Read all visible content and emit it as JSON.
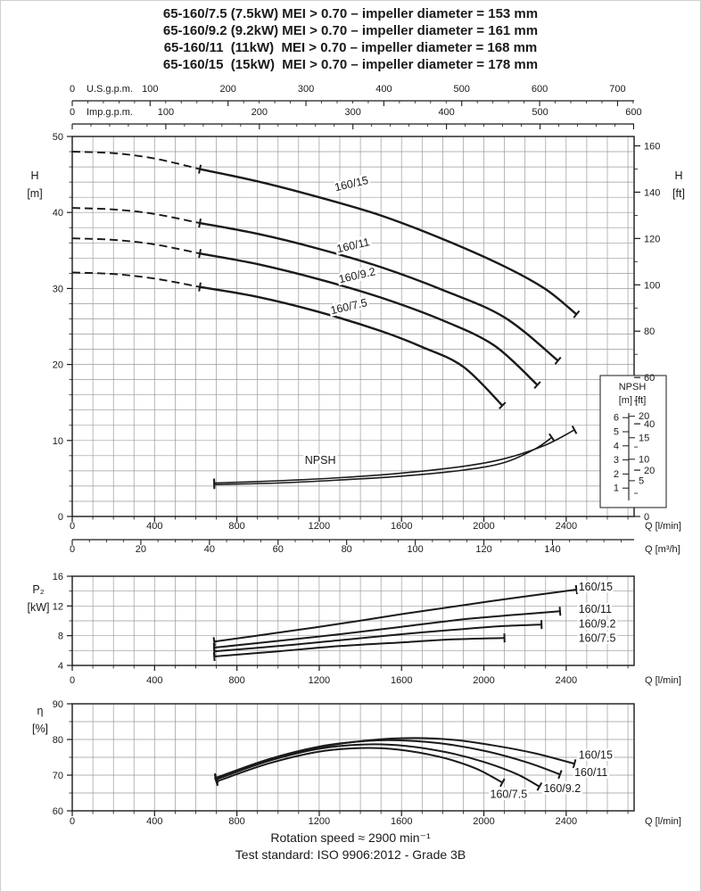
{
  "style": {
    "ink": "#1a1a1a",
    "grid_color": "#9a9a9a",
    "paper": "#ffffff"
  },
  "header": {
    "lines": [
      "65-160/7.5 (7.5kW) MEI > 0.70 – impeller diameter = 153 mm",
      "65-160/9.2 (9.2kW) MEI > 0.70 – impeller diameter = 161 mm",
      "65-160/11  (11kW)  MEI > 0.70 – impeller diameter = 168 mm",
      "65-160/15  (15kW)  MEI > 0.70 – impeller diameter = 178 mm"
    ]
  },
  "footer": {
    "line1": "Rotation speed ≈ 2900 min⁻¹",
    "line2": "Test standard: ISO 9906:2012 - Grade 3B"
  },
  "chart_data": [
    {
      "id": "head-flow",
      "type": "line",
      "xlim": [
        0,
        2730
      ],
      "ylim": [
        0,
        50
      ],
      "grid": {
        "x_step": 100,
        "y_step": 2
      },
      "x_axis": {
        "ticks": [
          0,
          400,
          800,
          1200,
          1600,
          2000,
          2400
        ],
        "minor_step": 100,
        "label": "Q [l/min]"
      },
      "y_axis": {
        "title": "H",
        "unit": "[m]",
        "ticks": [
          0,
          10,
          20,
          30,
          40,
          50
        ]
      },
      "right_axis": {
        "title": "H",
        "unit": "[ft]",
        "m_per_unit": 0.3048,
        "ticks": [
          0,
          20,
          40,
          60,
          80,
          100,
          120,
          140,
          160
        ],
        "minor_step": 10
      },
      "top_axes": [
        {
          "unit_label": "U.S.g.p.m.",
          "lmin_per_unit": 3.785,
          "ticks": [
            0,
            100,
            200,
            300,
            400,
            500,
            600,
            700
          ],
          "minor_step": 20
        },
        {
          "unit_label": "Imp.g.p.m.",
          "lmin_per_unit": 4.546,
          "ticks": [
            0,
            100,
            200,
            300,
            400,
            500,
            600
          ],
          "minor_step": 20
        }
      ],
      "extra_bottom_axis": {
        "label": "Q [m³/h]",
        "lmin_per_unit": 16.667,
        "ticks": [
          0,
          20,
          40,
          60,
          80,
          100,
          120,
          140
        ],
        "minor_step": 5
      },
      "npsh_box": {
        "title": "NPSH",
        "units": "[m] [ft]",
        "m_ticks": [
          1,
          2,
          3,
          4,
          5,
          6
        ],
        "ft_ticks": [
          5,
          10,
          15,
          20
        ]
      },
      "series": [
        {
          "name": "160/15",
          "width": 2.4,
          "end_ticks": true,
          "label": {
            "text": "160/15",
            "x": 1280,
            "y": 42.8,
            "rot": -13
          },
          "dashed_points": [
            [
              0,
              48
            ],
            [
              200,
              47.8
            ],
            [
              400,
              47.1
            ],
            [
              620,
              45.7
            ]
          ],
          "points": [
            [
              620,
              45.7
            ],
            [
              900,
              44.1
            ],
            [
              1200,
              42
            ],
            [
              1500,
              39.6
            ],
            [
              1800,
              36.5
            ],
            [
              2100,
              32.9
            ],
            [
              2300,
              29.9
            ],
            [
              2450,
              26.6
            ]
          ]
        },
        {
          "name": "160/11",
          "width": 2.4,
          "end_ticks": true,
          "label": {
            "text": "160/11",
            "x": 1290,
            "y": 34.7,
            "rot": -13
          },
          "dashed_points": [
            [
              0,
              40.6
            ],
            [
              200,
              40.4
            ],
            [
              400,
              39.8
            ],
            [
              620,
              38.6
            ]
          ],
          "points": [
            [
              620,
              38.6
            ],
            [
              900,
              37.2
            ],
            [
              1200,
              35.2
            ],
            [
              1500,
              32.8
            ],
            [
              1800,
              29.8
            ],
            [
              2100,
              26.2
            ],
            [
              2360,
              20.5
            ]
          ]
        },
        {
          "name": "160/9.2",
          "width": 2.4,
          "end_ticks": true,
          "label": {
            "text": "160/9.2",
            "x": 1300,
            "y": 30.7,
            "rot": -13
          },
          "dashed_points": [
            [
              0,
              36.6
            ],
            [
              200,
              36.4
            ],
            [
              400,
              35.8
            ],
            [
              620,
              34.6
            ]
          ],
          "points": [
            [
              620,
              34.6
            ],
            [
              900,
              33.2
            ],
            [
              1200,
              31.2
            ],
            [
              1500,
              28.8
            ],
            [
              1800,
              25.8
            ],
            [
              2050,
              22.5
            ],
            [
              2260,
              17.3
            ]
          ]
        },
        {
          "name": "160/7.5",
          "width": 2.4,
          "end_ticks": true,
          "label": {
            "text": "160/7.5",
            "x": 1260,
            "y": 26.6,
            "rot": -13
          },
          "dashed_points": [
            [
              0,
              32.1
            ],
            [
              200,
              31.9
            ],
            [
              400,
              31.3
            ],
            [
              620,
              30.2
            ]
          ],
          "points": [
            [
              620,
              30.2
            ],
            [
              900,
              28.9
            ],
            [
              1200,
              26.9
            ],
            [
              1500,
              24.4
            ],
            [
              1700,
              22.3
            ],
            [
              1900,
              19.7
            ],
            [
              2090,
              14.6
            ]
          ]
        },
        {
          "name": "NPSH-upper",
          "width": 1.6,
          "end_ticks": true,
          "label": {
            "text": "NPSH",
            "x": 1130,
            "y": 6.9,
            "rot": 0
          },
          "points": [
            [
              690,
              4.4
            ],
            [
              1000,
              4.7
            ],
            [
              1300,
              5.1
            ],
            [
              1600,
              5.7
            ],
            [
              1900,
              6.6
            ],
            [
              2100,
              7.6
            ],
            [
              2300,
              9.4
            ],
            [
              2440,
              11.4
            ]
          ]
        },
        {
          "name": "NPSH-lower",
          "width": 1.6,
          "end_ticks": true,
          "points": [
            [
              690,
              4.2
            ],
            [
              1000,
              4.4
            ],
            [
              1300,
              4.8
            ],
            [
              1600,
              5.3
            ],
            [
              1900,
              6.1
            ],
            [
              2100,
              7.1
            ],
            [
              2250,
              8.9
            ],
            [
              2330,
              10.4
            ]
          ]
        }
      ]
    },
    {
      "id": "power",
      "type": "line",
      "xlim": [
        0,
        2730
      ],
      "ylim": [
        4,
        16
      ],
      "grid": {
        "x_step": 100,
        "y_step": 2
      },
      "x_axis": {
        "ticks": [
          0,
          400,
          800,
          1200,
          1600,
          2000,
          2400
        ],
        "minor_step": 100,
        "label": "Q [l/min]"
      },
      "y_axis": {
        "title": "P₂",
        "unit": "[kW]",
        "ticks": [
          4,
          8,
          12,
          16
        ]
      },
      "series": [
        {
          "name": "160/15",
          "width": 2,
          "end_ticks": true,
          "label": {
            "text": "160/15",
            "x": 2460,
            "y": 14.1,
            "rot": 0
          },
          "points": [
            [
              690,
              7.2
            ],
            [
              1000,
              8.4
            ],
            [
              1300,
              9.6
            ],
            [
              1600,
              10.9
            ],
            [
              1900,
              12.1
            ],
            [
              2150,
              13.1
            ],
            [
              2450,
              14.2
            ]
          ]
        },
        {
          "name": "160/11",
          "width": 2,
          "end_ticks": true,
          "label": {
            "text": "160/11",
            "x": 2460,
            "y": 11.1,
            "rot": 0
          },
          "points": [
            [
              690,
              6.4
            ],
            [
              1000,
              7.3
            ],
            [
              1300,
              8.2
            ],
            [
              1600,
              9.2
            ],
            [
              1900,
              10.2
            ],
            [
              2150,
              10.8
            ],
            [
              2370,
              11.3
            ]
          ]
        },
        {
          "name": "160/9.2",
          "width": 2,
          "end_ticks": true,
          "label": {
            "text": "160/9.2",
            "x": 2460,
            "y": 9.1,
            "rot": 0
          },
          "points": [
            [
              690,
              5.9
            ],
            [
              1000,
              6.6
            ],
            [
              1300,
              7.4
            ],
            [
              1600,
              8.2
            ],
            [
              1900,
              8.9
            ],
            [
              2100,
              9.3
            ],
            [
              2280,
              9.5
            ]
          ]
        },
        {
          "name": "160/7.5",
          "width": 2,
          "end_ticks": true,
          "label": {
            "text": "160/7.5",
            "x": 2460,
            "y": 7.2,
            "rot": 0
          },
          "points": [
            [
              690,
              5.2
            ],
            [
              1000,
              5.9
            ],
            [
              1300,
              6.6
            ],
            [
              1600,
              7.1
            ],
            [
              1850,
              7.5
            ],
            [
              2100,
              7.7
            ]
          ]
        }
      ]
    },
    {
      "id": "efficiency",
      "type": "line",
      "xlim": [
        0,
        2730
      ],
      "ylim": [
        60,
        90
      ],
      "grid": {
        "x_step": 100,
        "y_step": 5
      },
      "x_axis": {
        "ticks": [
          0,
          400,
          800,
          1200,
          1600,
          2000,
          2400
        ],
        "minor_step": 100,
        "label": "Q [l/min]"
      },
      "y_axis": {
        "title": "η",
        "unit": "[%]",
        "ticks": [
          60,
          70,
          80,
          90
        ]
      },
      "series": [
        {
          "name": "160/15",
          "width": 2,
          "end_ticks": true,
          "label": {
            "text": "160/15",
            "x": 2460,
            "y": 74.6,
            "rot": 0
          },
          "points": [
            [
              700,
              69
            ],
            [
              950,
              74
            ],
            [
              1200,
              77.8
            ],
            [
              1450,
              79.8
            ],
            [
              1650,
              80.4
            ],
            [
              1850,
              79.9
            ],
            [
              2050,
              78.3
            ],
            [
              2250,
              76.1
            ],
            [
              2440,
              73.2
            ]
          ]
        },
        {
          "name": "160/11",
          "width": 2,
          "end_ticks": true,
          "label": {
            "text": "160/11",
            "x": 2440,
            "y": 69.7,
            "rot": 0
          },
          "points": [
            [
              700,
              69.3
            ],
            [
              950,
              74.4
            ],
            [
              1200,
              78
            ],
            [
              1430,
              79.6
            ],
            [
              1620,
              79.7
            ],
            [
              1820,
              78.7
            ],
            [
              2020,
              76.6
            ],
            [
              2220,
              73.4
            ],
            [
              2370,
              70.2
            ]
          ]
        },
        {
          "name": "160/9.2",
          "width": 2,
          "end_ticks": true,
          "label": {
            "text": "160/9.2",
            "x": 2290,
            "y": 65.2,
            "rot": 0
          },
          "points": [
            [
              700,
              68.8
            ],
            [
              950,
              73.9
            ],
            [
              1200,
              77.4
            ],
            [
              1420,
              78.6
            ],
            [
              1620,
              78.2
            ],
            [
              1820,
              76.4
            ],
            [
              2000,
              73.7
            ],
            [
              2160,
              70.3
            ],
            [
              2270,
              66.8
            ]
          ]
        },
        {
          "name": "160/7.5",
          "width": 2,
          "end_ticks": true,
          "label": {
            "text": "160/7.5",
            "x": 2030,
            "y": 63.6,
            "rot": 0
          },
          "points": [
            [
              700,
              68.2
            ],
            [
              950,
              73.2
            ],
            [
              1200,
              76.6
            ],
            [
              1400,
              77.6
            ],
            [
              1580,
              77.2
            ],
            [
              1780,
              75.2
            ],
            [
              1960,
              71.9
            ],
            [
              2090,
              67.9
            ]
          ]
        }
      ]
    }
  ]
}
